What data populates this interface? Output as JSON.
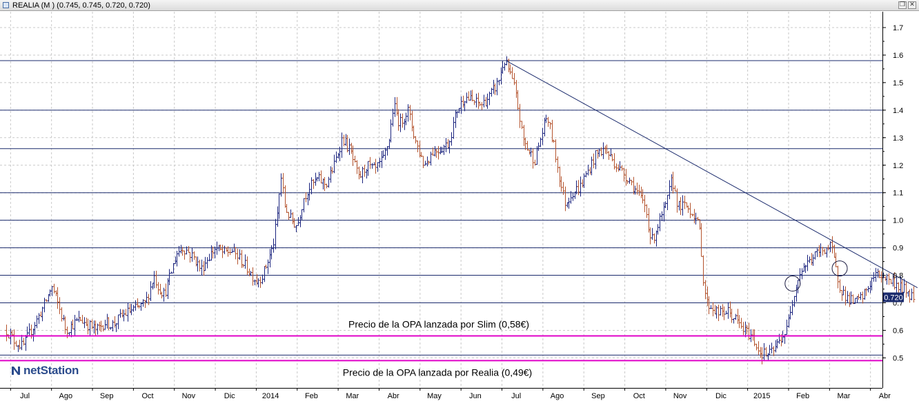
{
  "window": {
    "title": "REALIA (M ) (0.745, 0.745, 0.720, 0.720)",
    "restore_glyph": "❐",
    "close_glyph": "✕"
  },
  "logo": {
    "text": "netStation",
    "icon": "netstation-logo-icon"
  },
  "colors": {
    "background": "#ffffff",
    "grid": "#c8c8c8",
    "level_line": "#1a2a6c",
    "trend_line": "#1a2a6c",
    "up_bar": "#1a237e",
    "down_bar": "#b4532d",
    "opa_line": "#e000c8",
    "price_tag": "#1a2a6c"
  },
  "chart_data": {
    "type": "ohlc",
    "ylim": [
      0.47,
      1.75
    ],
    "y_ticks": [
      0.5,
      0.6,
      0.7,
      0.8,
      0.9,
      1.0,
      1.1,
      1.2,
      1.3,
      1.4,
      1.5,
      1.6,
      1.7
    ],
    "y_tick_labels": [
      "0.5",
      "0.6",
      "0.7",
      "0.8",
      "0.9",
      "1.0",
      "1.1",
      "1.2",
      "1.3",
      "1.4",
      "1.5",
      "1.6",
      "1.7"
    ],
    "x_labels": [
      "Jul",
      "Ago",
      "Sep",
      "Oct",
      "Nov",
      "Dic",
      "2014",
      "Feb",
      "Mar",
      "Abr",
      "May",
      "Jun",
      "Jul",
      "Ago",
      "Sep",
      "Oct",
      "Nov",
      "Dic",
      "2015",
      "Feb",
      "Mar",
      "Abr"
    ],
    "grid": true,
    "last_price": 0.72,
    "last_price_label": "0.720",
    "horizontal_levels": [
      0.51,
      0.7,
      0.8,
      0.9,
      1.0,
      1.1,
      1.26,
      1.4,
      1.58
    ],
    "trendline": {
      "from_month": 11.8,
      "from_value": 1.58,
      "to_month": 21.85,
      "to_value": 0.755
    },
    "opa_lines": [
      {
        "value": 0.58,
        "label": "Precio de la OPA lanzada por Slim (0,58€)"
      },
      {
        "value": 0.49,
        "label": "Precio de la OPA lanzada por Realia (0,49€)"
      }
    ],
    "ellipses": [
      {
        "month": 18.8,
        "value": 0.77
      },
      {
        "month": 19.95,
        "value": 0.825
      }
    ],
    "price_path": [
      [
        -0.4,
        0.6
      ],
      [
        -0.2,
        0.56
      ],
      [
        0.0,
        0.54
      ],
      [
        0.2,
        0.6
      ],
      [
        0.35,
        0.64
      ],
      [
        0.55,
        0.7
      ],
      [
        0.7,
        0.76
      ],
      [
        0.8,
        0.72
      ],
      [
        0.95,
        0.65
      ],
      [
        1.05,
        0.6
      ],
      [
        1.2,
        0.62
      ],
      [
        1.4,
        0.64
      ],
      [
        1.6,
        0.62
      ],
      [
        1.8,
        0.6
      ],
      [
        2.0,
        0.63
      ],
      [
        2.2,
        0.62
      ],
      [
        2.4,
        0.65
      ],
      [
        2.6,
        0.67
      ],
      [
        2.8,
        0.68
      ],
      [
        3.0,
        0.7
      ],
      [
        3.1,
        0.75
      ],
      [
        3.2,
        0.8
      ],
      [
        3.3,
        0.76
      ],
      [
        3.45,
        0.73
      ],
      [
        3.6,
        0.8
      ],
      [
        3.75,
        0.88
      ],
      [
        3.9,
        0.9
      ],
      [
        4.0,
        0.89
      ],
      [
        4.2,
        0.86
      ],
      [
        4.35,
        0.82
      ],
      [
        4.5,
        0.86
      ],
      [
        4.7,
        0.9
      ],
      [
        4.9,
        0.88
      ],
      [
        5.1,
        0.89
      ],
      [
        5.3,
        0.86
      ],
      [
        5.5,
        0.82
      ],
      [
        5.7,
        0.78
      ],
      [
        5.85,
        0.8
      ],
      [
        6.0,
        0.86
      ],
      [
        6.1,
        0.9
      ],
      [
        6.2,
        1.0
      ],
      [
        6.3,
        1.16
      ],
      [
        6.4,
        1.05
      ],
      [
        6.55,
        1.0
      ],
      [
        6.7,
        0.98
      ],
      [
        6.85,
        1.08
      ],
      [
        7.0,
        1.12
      ],
      [
        7.2,
        1.15
      ],
      [
        7.4,
        1.13
      ],
      [
        7.6,
        1.2
      ],
      [
        7.8,
        1.3
      ],
      [
        8.0,
        1.25
      ],
      [
        8.2,
        1.15
      ],
      [
        8.4,
        1.2
      ],
      [
        8.6,
        1.18
      ],
      [
        8.8,
        1.22
      ],
      [
        8.95,
        1.3
      ],
      [
        9.05,
        1.42
      ],
      [
        9.2,
        1.35
      ],
      [
        9.4,
        1.4
      ],
      [
        9.6,
        1.28
      ],
      [
        9.8,
        1.2
      ],
      [
        10.0,
        1.25
      ],
      [
        10.2,
        1.26
      ],
      [
        10.4,
        1.28
      ],
      [
        10.6,
        1.4
      ],
      [
        10.8,
        1.45
      ],
      [
        11.0,
        1.43
      ],
      [
        11.2,
        1.42
      ],
      [
        11.4,
        1.45
      ],
      [
        11.6,
        1.5
      ],
      [
        11.75,
        1.58
      ],
      [
        11.85,
        1.55
      ],
      [
        12.0,
        1.48
      ],
      [
        12.1,
        1.4
      ],
      [
        12.2,
        1.3
      ],
      [
        12.35,
        1.25
      ],
      [
        12.5,
        1.22
      ],
      [
        12.65,
        1.3
      ],
      [
        12.8,
        1.38
      ],
      [
        12.95,
        1.28
      ],
      [
        13.05,
        1.2
      ],
      [
        13.15,
        1.12
      ],
      [
        13.25,
        1.06
      ],
      [
        13.4,
        1.1
      ],
      [
        13.6,
        1.12
      ],
      [
        13.8,
        1.18
      ],
      [
        14.0,
        1.24
      ],
      [
        14.2,
        1.26
      ],
      [
        14.4,
        1.22
      ],
      [
        14.6,
        1.18
      ],
      [
        14.8,
        1.15
      ],
      [
        15.0,
        1.1
      ],
      [
        15.2,
        1.05
      ],
      [
        15.35,
        0.92
      ],
      [
        15.5,
        0.98
      ],
      [
        15.7,
        1.05
      ],
      [
        15.85,
        1.15
      ],
      [
        16.0,
        1.05
      ],
      [
        16.2,
        1.05
      ],
      [
        16.4,
        1.02
      ],
      [
        16.55,
        0.95
      ],
      [
        16.6,
        0.8
      ],
      [
        16.7,
        0.7
      ],
      [
        16.85,
        0.68
      ],
      [
        17.0,
        0.66
      ],
      [
        17.2,
        0.67
      ],
      [
        17.4,
        0.64
      ],
      [
        17.6,
        0.6
      ],
      [
        17.8,
        0.58
      ],
      [
        17.9,
        0.55
      ],
      [
        18.0,
        0.52
      ],
      [
        18.2,
        0.51
      ],
      [
        18.35,
        0.53
      ],
      [
        18.5,
        0.57
      ],
      [
        18.65,
        0.6
      ],
      [
        18.75,
        0.68
      ],
      [
        18.85,
        0.75
      ],
      [
        19.0,
        0.82
      ],
      [
        19.2,
        0.85
      ],
      [
        19.4,
        0.88
      ],
      [
        19.6,
        0.9
      ],
      [
        19.75,
        0.9
      ],
      [
        19.85,
        0.82
      ],
      [
        19.95,
        0.76
      ],
      [
        20.1,
        0.72
      ],
      [
        20.3,
        0.7
      ],
      [
        20.5,
        0.72
      ],
      [
        20.65,
        0.76
      ],
      [
        20.8,
        0.8
      ],
      [
        21.0,
        0.8
      ],
      [
        21.2,
        0.78
      ],
      [
        21.4,
        0.76
      ],
      [
        21.6,
        0.74
      ],
      [
        21.75,
        0.72
      ]
    ]
  }
}
